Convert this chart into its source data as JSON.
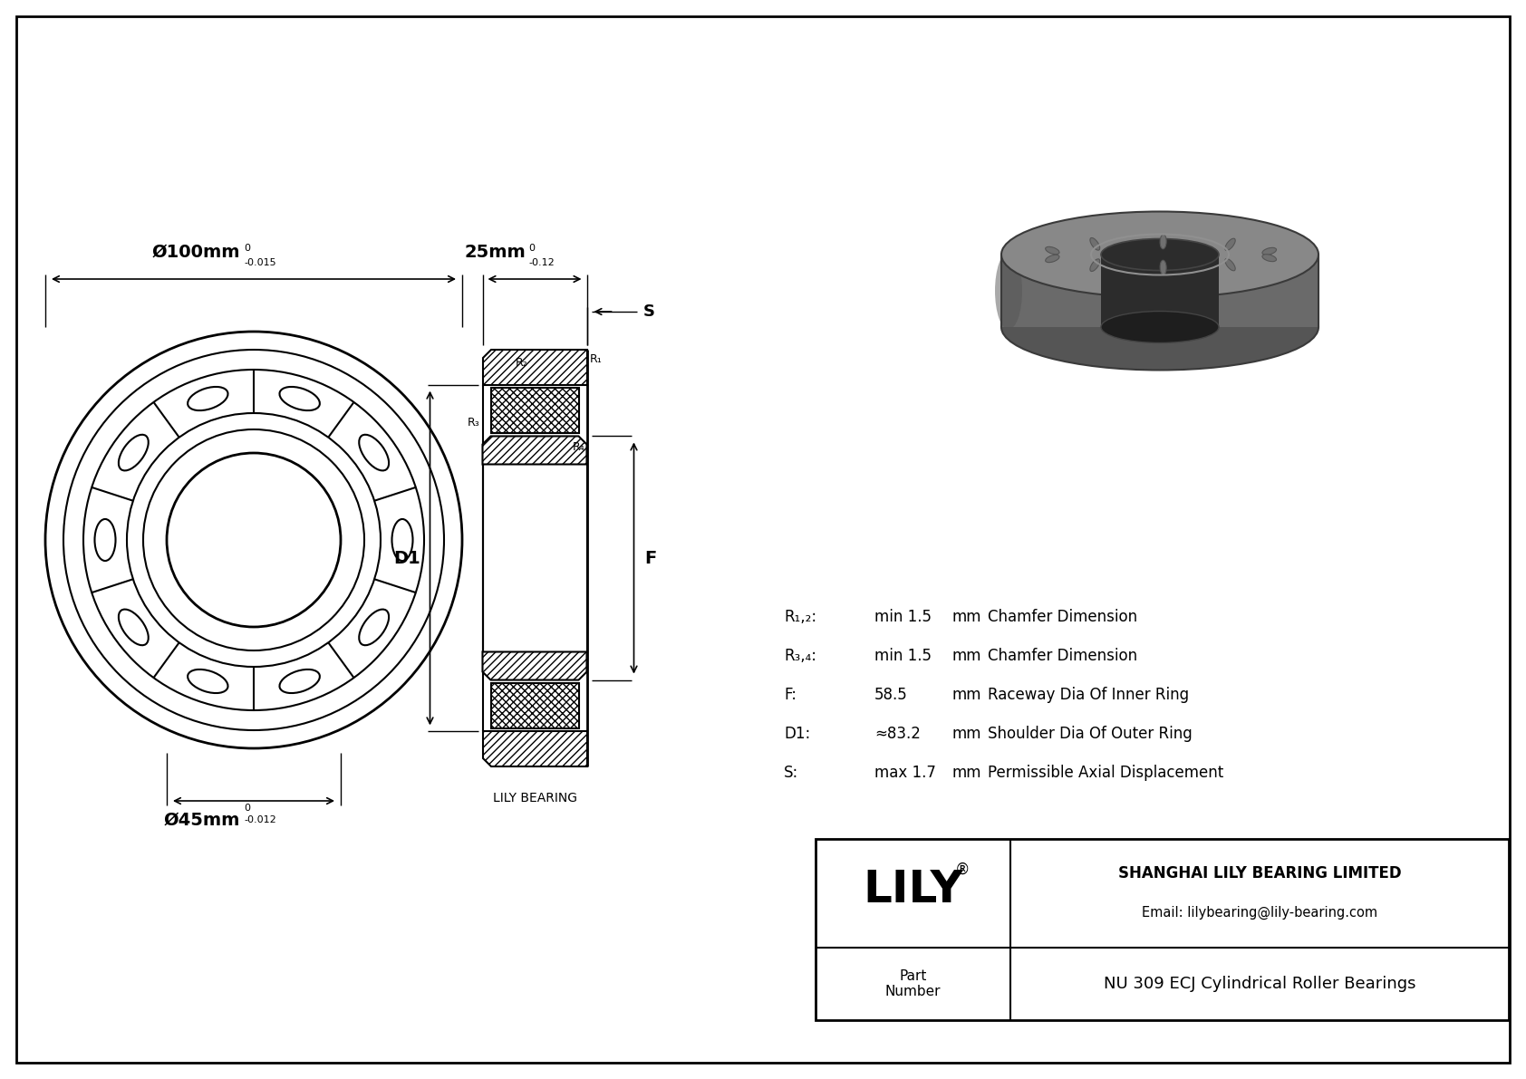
{
  "bg_color": "#ffffff",
  "line_color": "#000000",
  "dim_outer": "Ø100mm",
  "dim_outer_tol": "-0.015",
  "dim_outer_sup": "0",
  "dim_inner": "Ø45mm",
  "dim_inner_tol": "-0.012",
  "dim_inner_sup": "0",
  "dim_width": "25mm",
  "dim_width_tol": "-0.12",
  "dim_width_sup": "0",
  "label_D1": "D1",
  "label_F": "F",
  "label_S": "S",
  "label_R1": "R₁",
  "label_R2": "R₂",
  "label_R3": "R₃",
  "label_R4": "R₄",
  "specs": [
    {
      "symbol": "R₁,₂:",
      "value": "min 1.5",
      "unit": "mm",
      "desc": "Chamfer Dimension"
    },
    {
      "symbol": "R₃,₄:",
      "value": "min 1.5",
      "unit": "mm",
      "desc": "Chamfer Dimension"
    },
    {
      "symbol": "F:",
      "value": "58.5",
      "unit": "mm",
      "desc": "Raceway Dia Of Inner Ring"
    },
    {
      "symbol": "D1:",
      "value": "≈83.2",
      "unit": "mm",
      "desc": "Shoulder Dia Of Outer Ring"
    },
    {
      "symbol": "S:",
      "value": "max 1.7",
      "unit": "mm",
      "desc": "Permissible Axial Displacement"
    }
  ],
  "company": "SHANGHAI LILY BEARING LIMITED",
  "email": "Email: lilybearing@lily-bearing.com",
  "brand": "LILY",
  "brand_reg": "®",
  "part_label": "Part\nNumber",
  "part_number": "NU 309 ECJ Cylindrical Roller Bearings",
  "lily_bearing_label": "LILY BEARING"
}
